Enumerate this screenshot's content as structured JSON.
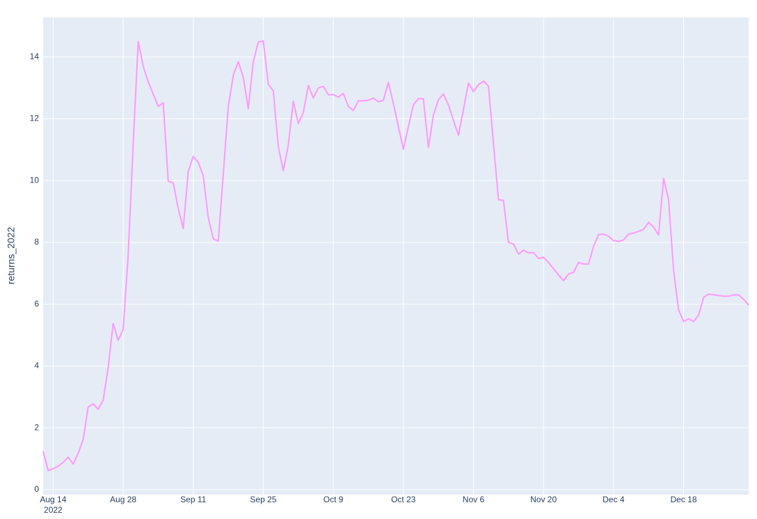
{
  "chart_data": {
    "type": "line",
    "y_label": "returns_2022",
    "x": [
      "2022-08-12",
      "2022-08-13",
      "2022-08-14",
      "2022-08-15",
      "2022-08-16",
      "2022-08-17",
      "2022-08-18",
      "2022-08-19",
      "2022-08-20",
      "2022-08-21",
      "2022-08-22",
      "2022-08-23",
      "2022-08-24",
      "2022-08-25",
      "2022-08-26",
      "2022-08-27",
      "2022-08-28",
      "2022-08-29",
      "2022-08-30",
      "2022-08-31",
      "2022-09-01",
      "2022-09-02",
      "2022-09-03",
      "2022-09-04",
      "2022-09-05",
      "2022-09-06",
      "2022-09-07",
      "2022-09-08",
      "2022-09-09",
      "2022-09-10",
      "2022-09-11",
      "2022-09-12",
      "2022-09-13",
      "2022-09-14",
      "2022-09-15",
      "2022-09-16",
      "2022-09-17",
      "2022-09-18",
      "2022-09-19",
      "2022-09-20",
      "2022-09-21",
      "2022-09-22",
      "2022-09-23",
      "2022-09-24",
      "2022-09-25",
      "2022-09-26",
      "2022-09-27",
      "2022-09-28",
      "2022-09-29",
      "2022-09-30",
      "2022-10-01",
      "2022-10-02",
      "2022-10-03",
      "2022-10-04",
      "2022-10-05",
      "2022-10-06",
      "2022-10-07",
      "2022-10-08",
      "2022-10-09",
      "2022-10-10",
      "2022-10-11",
      "2022-10-12",
      "2022-10-13",
      "2022-10-14",
      "2022-10-15",
      "2022-10-16",
      "2022-10-17",
      "2022-10-18",
      "2022-10-19",
      "2022-10-20",
      "2022-10-21",
      "2022-10-22",
      "2022-10-23",
      "2022-10-24",
      "2022-10-25",
      "2022-10-26",
      "2022-10-27",
      "2022-10-28",
      "2022-10-29",
      "2022-10-30",
      "2022-10-31",
      "2022-11-01",
      "2022-11-02",
      "2022-11-03",
      "2022-11-04",
      "2022-11-05",
      "2022-11-06",
      "2022-11-07",
      "2022-11-08",
      "2022-11-09",
      "2022-11-10",
      "2022-11-11",
      "2022-11-12",
      "2022-11-13",
      "2022-11-14",
      "2022-11-15",
      "2022-11-16",
      "2022-11-17",
      "2022-11-18",
      "2022-11-19",
      "2022-11-20",
      "2022-11-21",
      "2022-11-22",
      "2022-11-23",
      "2022-11-24",
      "2022-11-25",
      "2022-11-26",
      "2022-11-27",
      "2022-11-28",
      "2022-11-29",
      "2022-11-30",
      "2022-12-01",
      "2022-12-02",
      "2022-12-03",
      "2022-12-04",
      "2022-12-05",
      "2022-12-06",
      "2022-12-07",
      "2022-12-08",
      "2022-12-09",
      "2022-12-10",
      "2022-12-11",
      "2022-12-12",
      "2022-12-13",
      "2022-12-14",
      "2022-12-15",
      "2022-12-16",
      "2022-12-17",
      "2022-12-18",
      "2022-12-19",
      "2022-12-20",
      "2022-12-21",
      "2022-12-22",
      "2022-12-23",
      "2022-12-24",
      "2022-12-25",
      "2022-12-26",
      "2022-12-27",
      "2022-12-28",
      "2022-12-29",
      "2022-12-30",
      "2022-12-31"
    ],
    "series": [
      {
        "name": "returns_2022",
        "color": "#ff97ff",
        "values": [
          1.25,
          0.62,
          0.68,
          0.76,
          0.88,
          1.05,
          0.83,
          1.17,
          1.62,
          2.67,
          2.78,
          2.6,
          2.9,
          3.95,
          5.38,
          4.83,
          5.18,
          7.6,
          11.2,
          14.5,
          13.7,
          13.2,
          12.8,
          12.4,
          12.52,
          9.98,
          9.93,
          9.1,
          8.45,
          10.3,
          10.78,
          10.6,
          10.15,
          8.8,
          8.12,
          8.04,
          10.2,
          12.4,
          13.4,
          13.85,
          13.35,
          12.33,
          13.85,
          14.48,
          14.52,
          13.12,
          12.9,
          11.1,
          10.32,
          11.15,
          12.57,
          11.85,
          12.2,
          13.08,
          12.67,
          13.0,
          13.05,
          12.78,
          12.78,
          12.7,
          12.82,
          12.4,
          12.27,
          12.58,
          12.58,
          12.6,
          12.67,
          12.55,
          12.6,
          13.18,
          12.5,
          11.75,
          11.02,
          11.75,
          12.45,
          12.65,
          12.65,
          11.07,
          12.12,
          12.62,
          12.8,
          12.45,
          11.95,
          11.47,
          12.3,
          13.15,
          12.88,
          13.1,
          13.22,
          13.06,
          11.2,
          9.38,
          9.36,
          8.0,
          7.95,
          7.62,
          7.75,
          7.66,
          7.67,
          7.48,
          7.52,
          7.35,
          7.15,
          6.95,
          6.76,
          6.98,
          7.03,
          7.35,
          7.3,
          7.3,
          7.87,
          8.25,
          8.27,
          8.2,
          8.06,
          8.03,
          8.08,
          8.27,
          8.3,
          8.36,
          8.42,
          8.65,
          8.5,
          8.24,
          10.07,
          9.38,
          7.1,
          5.82,
          5.44,
          5.53,
          5.44,
          5.65,
          6.22,
          6.33,
          6.31,
          6.28,
          6.26,
          6.26,
          6.3,
          6.3,
          6.16,
          5.97
        ]
      }
    ],
    "xlim": [
      "2022-08-12",
      "2022-12-31"
    ],
    "xticks": [
      {
        "value": "2022-08-14",
        "label": "Aug 14\n2022"
      },
      {
        "value": "2022-08-28",
        "label": "Aug 28"
      },
      {
        "value": "2022-09-11",
        "label": "Sep 11"
      },
      {
        "value": "2022-09-25",
        "label": "Sep 25"
      },
      {
        "value": "2022-10-09",
        "label": "Oct 9"
      },
      {
        "value": "2022-10-23",
        "label": "Oct 23"
      },
      {
        "value": "2022-11-06",
        "label": "Nov 6"
      },
      {
        "value": "2022-11-20",
        "label": "Nov 20"
      },
      {
        "value": "2022-12-04",
        "label": "Dec 4"
      },
      {
        "value": "2022-12-18",
        "label": "Dec 18"
      }
    ],
    "ylim": [
      -0.16,
      15.28
    ],
    "yticks": [
      0,
      2,
      4,
      6,
      8,
      10,
      12,
      14
    ],
    "grid": true
  }
}
